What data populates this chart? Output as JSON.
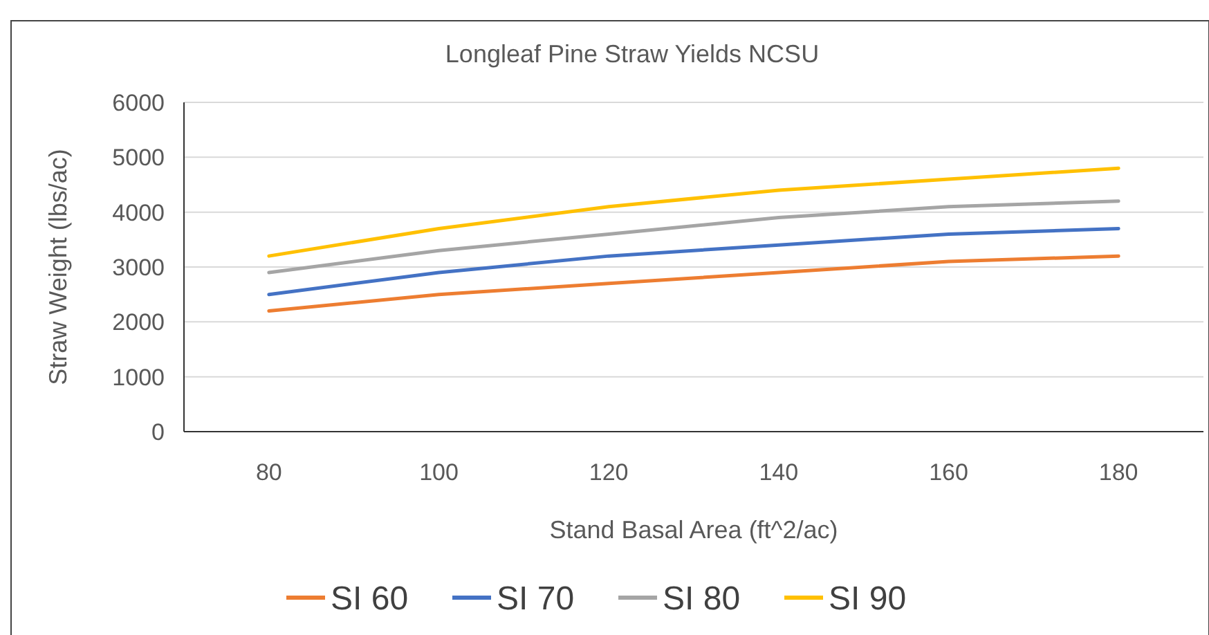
{
  "chart_data": {
    "type": "line",
    "title": "Longleaf Pine Straw Yields NCSU",
    "xlabel": "Stand Basal Area (ft^2/ac)",
    "ylabel": "Straw Weight (lbs/ac)",
    "categories": [
      "80",
      "100",
      "120",
      "140",
      "160",
      "180"
    ],
    "series": [
      {
        "name": "SI 60",
        "color": "#ed7d31",
        "values": [
          2200,
          2500,
          2700,
          2900,
          3100,
          3200
        ]
      },
      {
        "name": "SI 70",
        "color": "#4472c4",
        "values": [
          2500,
          2900,
          3200,
          3400,
          3600,
          3700
        ]
      },
      {
        "name": "SI 80",
        "color": "#a5a5a5",
        "values": [
          2900,
          3300,
          3600,
          3900,
          4100,
          4200
        ]
      },
      {
        "name": "SI 90",
        "color": "#ffc000",
        "values": [
          3200,
          3700,
          4100,
          4400,
          4600,
          4800
        ]
      }
    ],
    "ylim": [
      0,
      6000
    ],
    "yticks": [
      0,
      1000,
      2000,
      3000,
      4000,
      5000,
      6000
    ],
    "grid": "y",
    "legend": "bottom",
    "marker": "none",
    "line_style": "solid"
  }
}
